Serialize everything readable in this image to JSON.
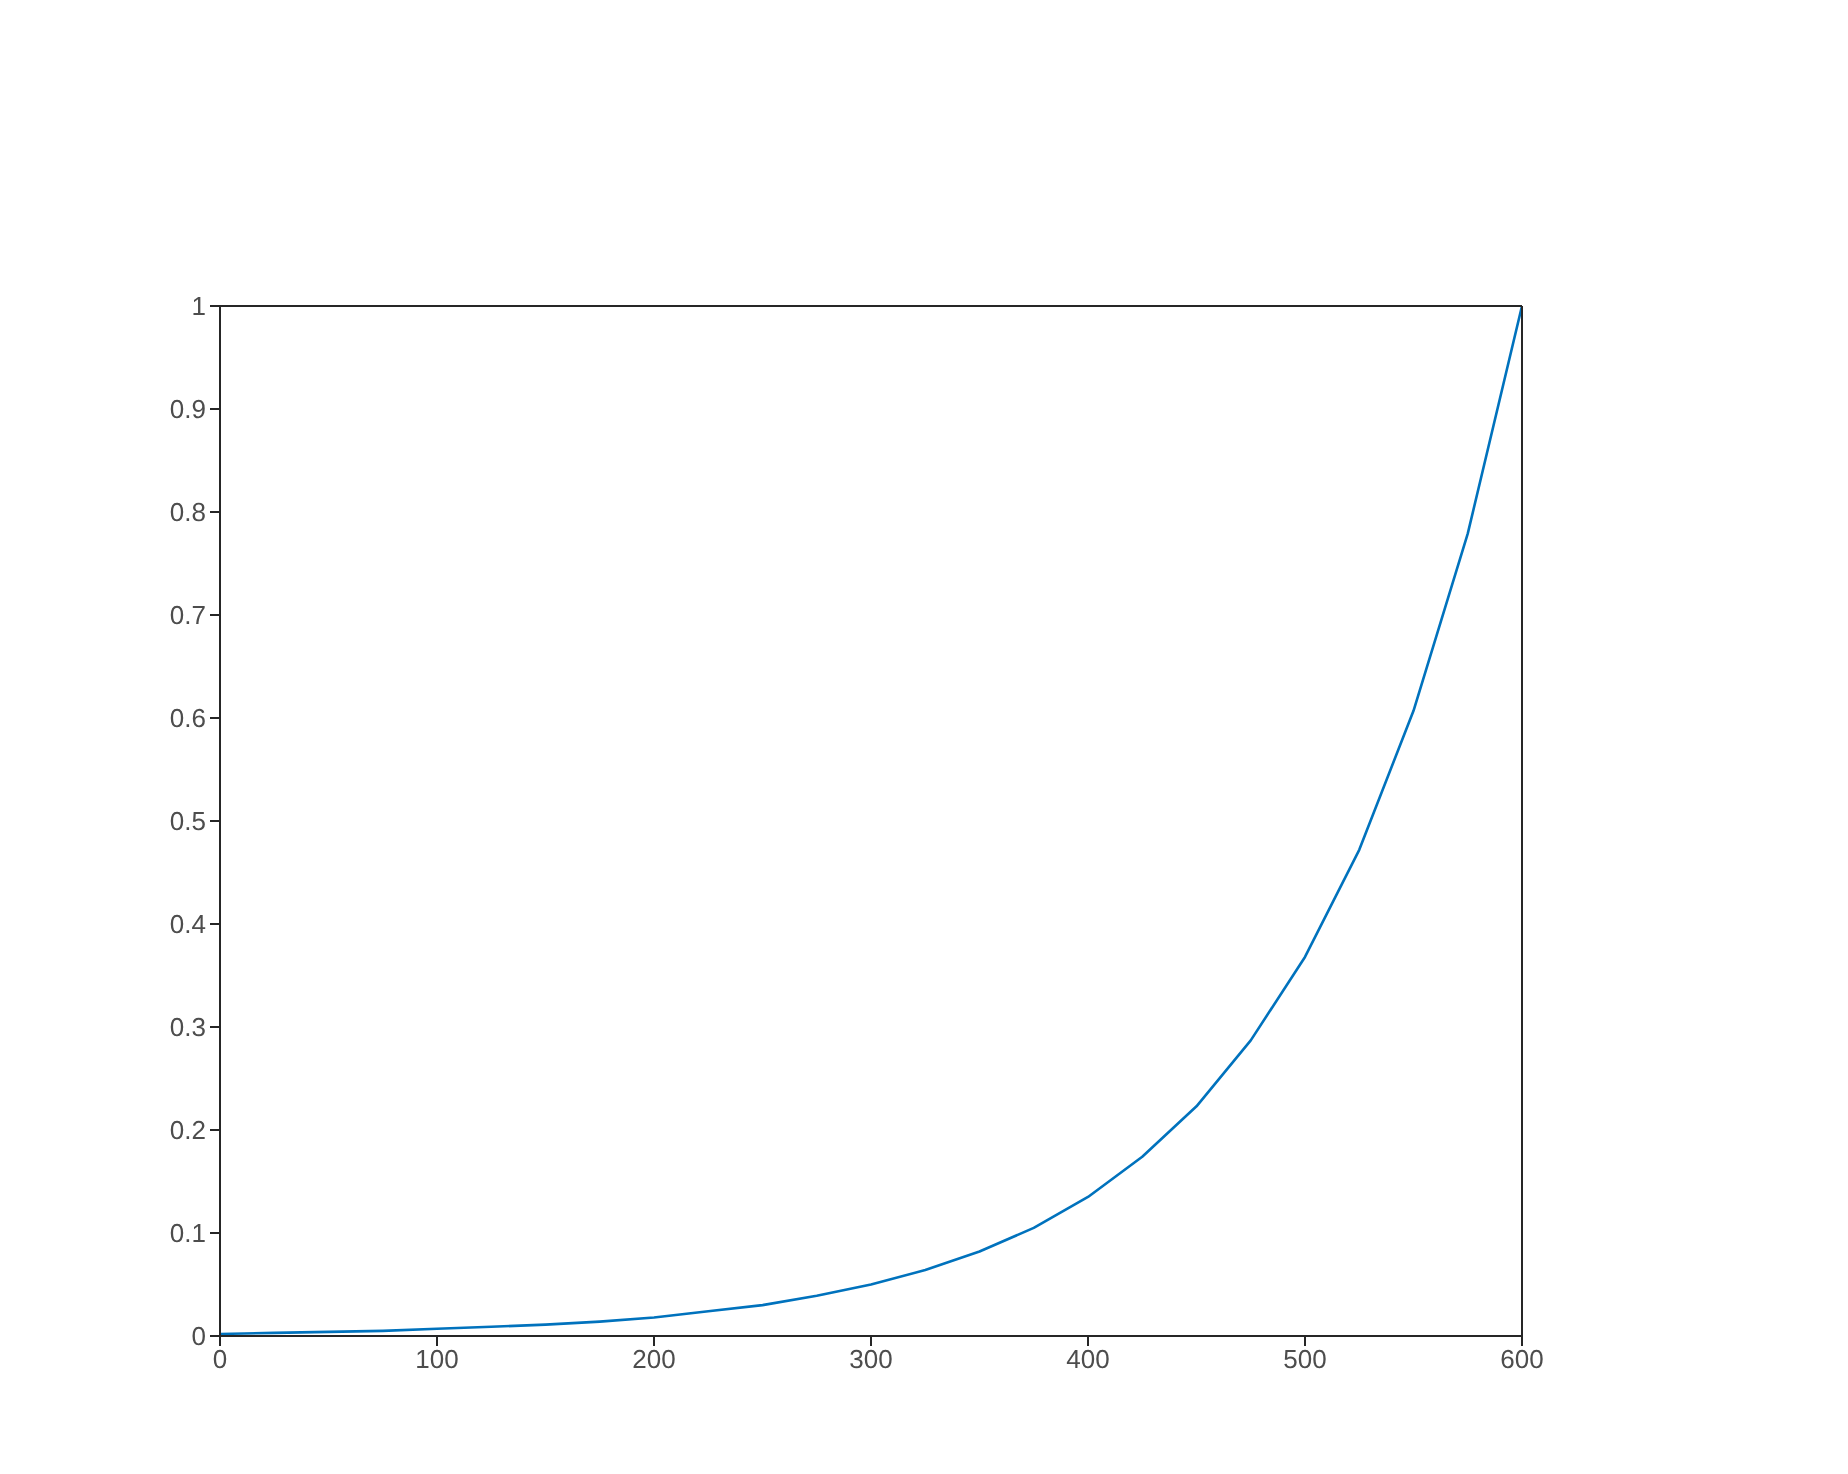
{
  "chart_data": {
    "type": "line",
    "x": [
      0,
      25,
      50,
      75,
      100,
      125,
      150,
      175,
      200,
      225,
      250,
      275,
      300,
      325,
      350,
      375,
      400,
      425,
      450,
      475,
      500,
      525,
      550,
      575,
      600
    ],
    "series": [
      {
        "color": "#0072bd",
        "values": [
          0.002,
          0.003,
          0.004,
          0.005,
          0.007,
          0.009,
          0.011,
          0.014,
          0.018,
          0.024,
          0.03,
          0.039,
          0.05,
          0.064,
          0.082,
          0.105,
          0.135,
          0.174,
          0.223,
          0.287,
          0.368,
          0.472,
          0.607,
          0.779,
          1.0
        ]
      }
    ],
    "xlim": [
      0,
      600
    ],
    "xticks": [
      0,
      100,
      200,
      300,
      400,
      500,
      600
    ],
    "ylim": [
      0,
      1
    ],
    "yticks": [
      0,
      0.1,
      0.2,
      0.3,
      0.4,
      0.5,
      0.6,
      0.7,
      0.8,
      0.9,
      1
    ],
    "grid": false,
    "legend": false,
    "marker": "none",
    "line_style": "solid"
  }
}
